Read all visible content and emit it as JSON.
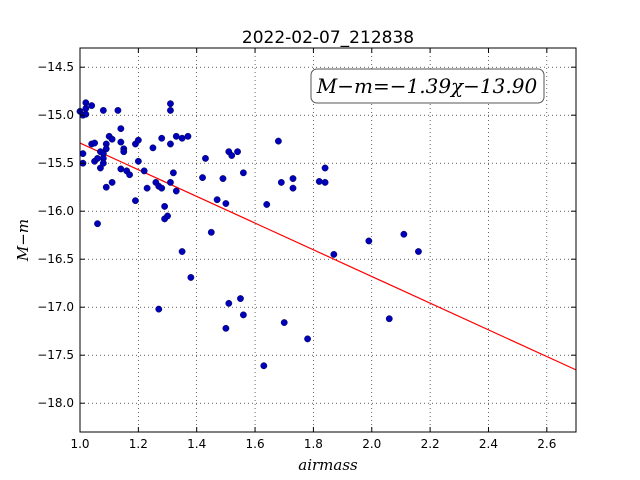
{
  "chart_data": {
    "type": "scatter",
    "title": "2022-02-07_212838",
    "xlabel": "airmass",
    "ylabel": "M−m",
    "xlim": [
      1.0,
      2.7
    ],
    "ylim": [
      -18.3,
      -14.3
    ],
    "y_inverted": true,
    "grid": true,
    "x_ticks": [
      1.0,
      1.2,
      1.4,
      1.6,
      1.8,
      2.0,
      2.2,
      2.4,
      2.6
    ],
    "y_ticks": [
      -14.5,
      -15.0,
      -15.5,
      -16.0,
      -16.5,
      -17.0,
      -17.5,
      -18.0
    ],
    "annotation": "M−m=−1.39χ−13.90",
    "fit": {
      "slope": -1.39,
      "intercept": -13.9,
      "color": "#ff0000"
    },
    "marker_color": "#0000bb",
    "points": [
      [
        1.0,
        -14.96
      ],
      [
        1.01,
        -15.0
      ],
      [
        1.02,
        -14.93
      ],
      [
        1.02,
        -14.87
      ],
      [
        1.04,
        -14.9
      ],
      [
        1.02,
        -14.99
      ],
      [
        1.01,
        -15.4
      ],
      [
        1.01,
        -15.5
      ],
      [
        1.04,
        -15.3
      ],
      [
        1.05,
        -15.29
      ],
      [
        1.05,
        -15.48
      ],
      [
        1.06,
        -15.45
      ],
      [
        1.07,
        -15.38
      ],
      [
        1.07,
        -15.55
      ],
      [
        1.08,
        -15.4
      ],
      [
        1.08,
        -15.45
      ],
      [
        1.08,
        -15.5
      ],
      [
        1.09,
        -15.3
      ],
      [
        1.09,
        -15.35
      ],
      [
        1.08,
        -14.95
      ],
      [
        1.1,
        -15.22
      ],
      [
        1.11,
        -15.25
      ],
      [
        1.13,
        -14.95
      ],
      [
        1.14,
        -15.14
      ],
      [
        1.14,
        -15.28
      ],
      [
        1.15,
        -15.35
      ],
      [
        1.15,
        -15.38
      ],
      [
        1.14,
        -15.56
      ],
      [
        1.16,
        -15.58
      ],
      [
        1.17,
        -15.62
      ],
      [
        1.11,
        -15.7
      ],
      [
        1.09,
        -15.75
      ],
      [
        1.06,
        -16.13
      ],
      [
        1.19,
        -15.3
      ],
      [
        1.2,
        -15.26
      ],
      [
        1.2,
        -15.48
      ],
      [
        1.22,
        -15.58
      ],
      [
        1.23,
        -15.76
      ],
      [
        1.19,
        -15.89
      ],
      [
        1.25,
        -15.34
      ],
      [
        1.28,
        -15.24
      ],
      [
        1.26,
        -15.7
      ],
      [
        1.27,
        -15.74
      ],
      [
        1.28,
        -15.76
      ],
      [
        1.29,
        -15.95
      ],
      [
        1.29,
        -16.08
      ],
      [
        1.3,
        -16.05
      ],
      [
        1.31,
        -15.7
      ],
      [
        1.32,
        -15.6
      ],
      [
        1.31,
        -14.88
      ],
      [
        1.31,
        -14.95
      ],
      [
        1.31,
        -15.3
      ],
      [
        1.33,
        -15.22
      ],
      [
        1.35,
        -15.24
      ],
      [
        1.37,
        -15.22
      ],
      [
        1.33,
        -15.79
      ],
      [
        1.35,
        -16.42
      ],
      [
        1.38,
        -16.69
      ],
      [
        1.27,
        -17.02
      ],
      [
        1.42,
        -15.65
      ],
      [
        1.43,
        -15.45
      ],
      [
        1.45,
        -16.22
      ],
      [
        1.47,
        -15.88
      ],
      [
        1.49,
        -15.66
      ],
      [
        1.5,
        -15.92
      ],
      [
        1.51,
        -15.38
      ],
      [
        1.52,
        -15.42
      ],
      [
        1.54,
        -15.38
      ],
      [
        1.56,
        -15.6
      ],
      [
        1.5,
        -17.22
      ],
      [
        1.51,
        -16.96
      ],
      [
        1.55,
        -16.91
      ],
      [
        1.56,
        -17.08
      ],
      [
        1.63,
        -17.61
      ],
      [
        1.64,
        -15.93
      ],
      [
        1.68,
        -15.27
      ],
      [
        1.69,
        -15.7
      ],
      [
        1.73,
        -15.66
      ],
      [
        1.73,
        -15.76
      ],
      [
        1.7,
        -17.16
      ],
      [
        1.78,
        -17.33
      ],
      [
        1.82,
        -15.69
      ],
      [
        1.84,
        -15.55
      ],
      [
        1.84,
        -15.7
      ],
      [
        1.87,
        -16.45
      ],
      [
        1.99,
        -16.31
      ],
      [
        2.06,
        -17.12
      ],
      [
        2.11,
        -16.24
      ],
      [
        2.16,
        -16.42
      ]
    ]
  }
}
